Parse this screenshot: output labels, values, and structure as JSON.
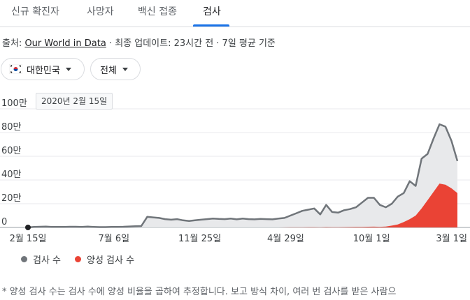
{
  "tabs": [
    "신규 확진자",
    "사망자",
    "백신 접종",
    "검사"
  ],
  "active_tab": "검사",
  "source": {
    "prefix": "출처: ",
    "link": "Our World in Data",
    "suffix": " · 최종 업데이트: 23시간 전 · 7일 평균 기준"
  },
  "filters": {
    "region": "대한민국",
    "scope": "전체"
  },
  "tooltip": "2020년 2월 15일",
  "colors": {
    "total": "#70757a",
    "positive": "#ea4335",
    "accent": "#1a73e8"
  },
  "chart_data": {
    "type": "area",
    "x_tick_labels": [
      "2월 15일",
      "7월 6일",
      "11월 25일",
      "4월 29일",
      "10월 1일",
      "3월 1일"
    ],
    "y_tick_labels": [
      "0",
      "20만",
      "40만",
      "60만",
      "80만",
      "100만"
    ],
    "ylim": [
      0,
      1000000
    ],
    "grid": true,
    "legend_position": "bottom",
    "series": [
      {
        "name": "검사 수",
        "values": [
          0,
          5000,
          6000,
          7000,
          5000,
          4000,
          5000,
          6000,
          6000,
          5000,
          7000,
          5000,
          3000,
          3000,
          4000,
          5000,
          6000,
          8000,
          10000,
          12000,
          90000,
          85000,
          80000,
          70000,
          65000,
          70000,
          60000,
          55000,
          60000,
          65000,
          70000,
          75000,
          72000,
          70000,
          75000,
          68000,
          75000,
          70000,
          68000,
          72000,
          70000,
          68000,
          75000,
          80000,
          100000,
          120000,
          140000,
          150000,
          160000,
          110000,
          190000,
          130000,
          125000,
          145000,
          155000,
          170000,
          210000,
          250000,
          250000,
          190000,
          170000,
          200000,
          260000,
          290000,
          390000,
          350000,
          580000,
          620000,
          750000,
          870000,
          850000,
          730000,
          560000
        ]
      },
      {
        "name": "양성 검사 수",
        "values": [
          0,
          0,
          0,
          0,
          0,
          0,
          0,
          0,
          0,
          0,
          0,
          0,
          0,
          0,
          0,
          0,
          0,
          0,
          0,
          0,
          0,
          0,
          0,
          0,
          0,
          0,
          0,
          0,
          0,
          0,
          0,
          0,
          0,
          0,
          0,
          0,
          0,
          0,
          0,
          0,
          0,
          0,
          0,
          500,
          1000,
          1500,
          2000,
          2500,
          2500,
          2000,
          3000,
          2500,
          2500,
          3000,
          3500,
          4500,
          5000,
          6000,
          6500,
          5500,
          7000,
          15000,
          25000,
          45000,
          70000,
          100000,
          160000,
          230000,
          300000,
          370000,
          360000,
          330000,
          290000
        ]
      }
    ]
  },
  "footnote": "* 양성 검사 수는 검사 수에 양성 비율을 곱하여 추정합니다. 보고 방식 차이, 여러 번 검사를 받은 사람으"
}
